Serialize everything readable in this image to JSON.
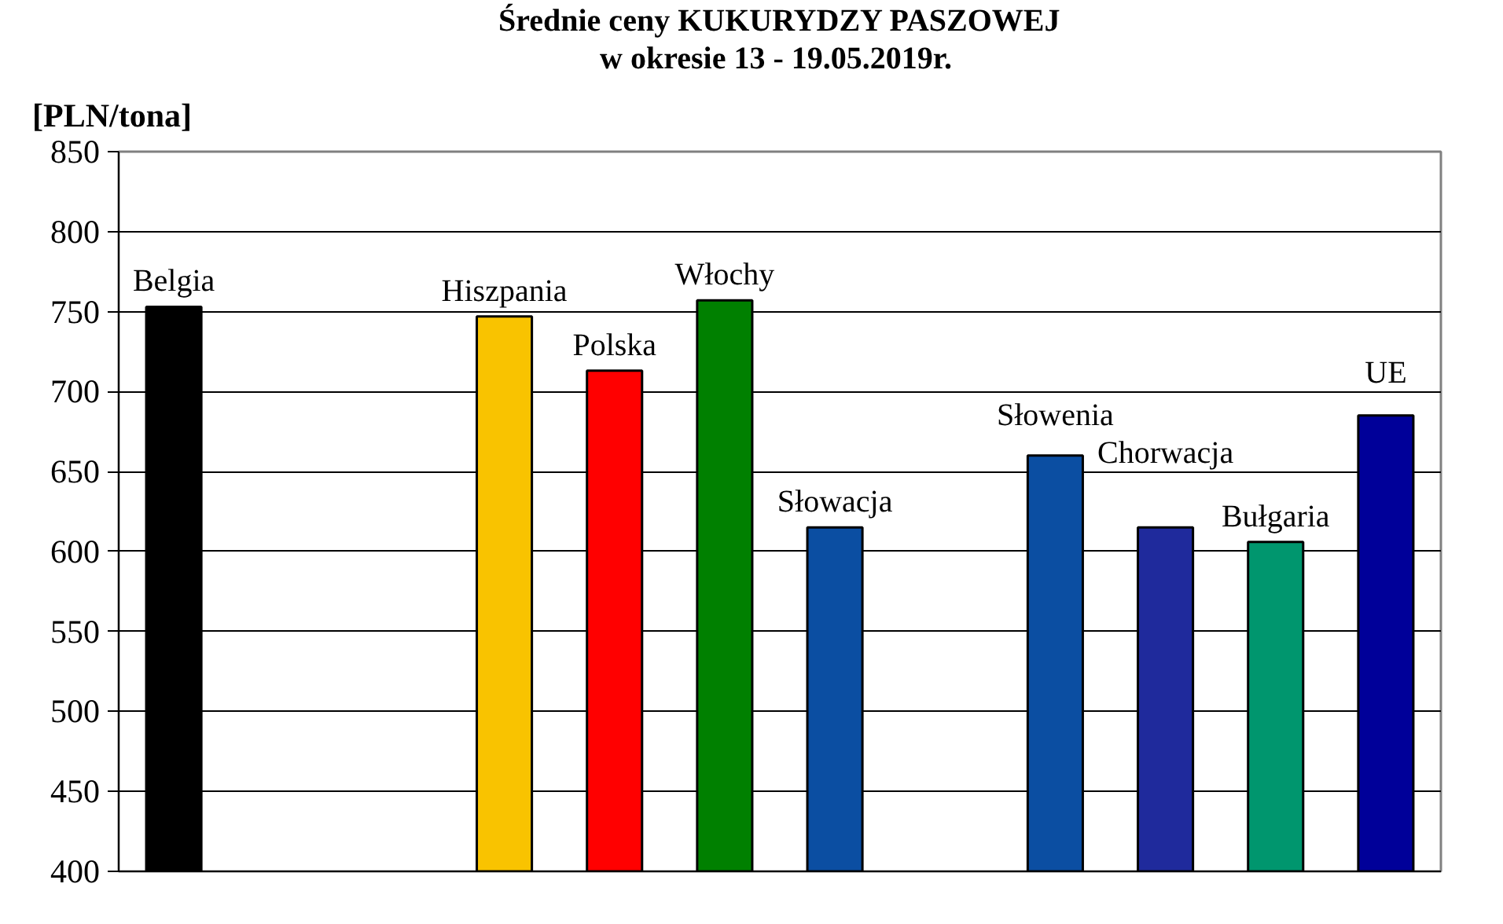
{
  "chart_data": {
    "type": "bar",
    "title": "Średnie ceny KUKURYDZY PASZOWEJ",
    "subtitle": "w okresie  13 - 19.05.2019r.",
    "ylabel": "[PLN/tona]",
    "categories": [
      "Belgia",
      null,
      null,
      "Hiszpania",
      "Polska",
      "Włochy",
      "Słowacja",
      null,
      "Słowenia",
      "Chorwacja",
      "Bułgaria",
      "UE"
    ],
    "values": [
      753,
      null,
      null,
      747,
      713,
      757,
      615,
      null,
      660,
      615,
      606,
      685
    ],
    "colors": [
      "#000000",
      null,
      null,
      "#f9c300",
      "#ff0000",
      "#008000",
      "#0b4ea2",
      null,
      "#0b4ea2",
      "#1f2a9c",
      "#00966e",
      "#000099"
    ],
    "ylim": [
      400,
      850
    ],
    "yticks": [
      400,
      450,
      500,
      550,
      600,
      650,
      700,
      750,
      800,
      850
    ],
    "grid": "y"
  }
}
